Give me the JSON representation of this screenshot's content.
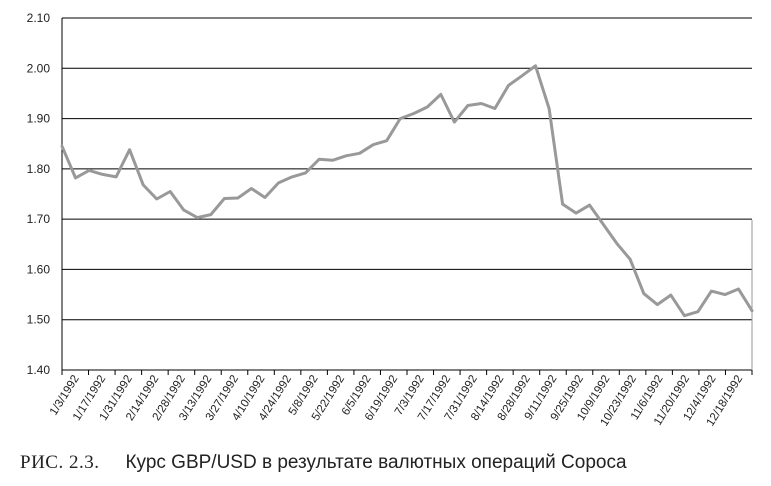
{
  "caption": {
    "figure_label": "РИС. 2.3.",
    "text": "Курс GBP/USD в результате валютных операций Сороса"
  },
  "chart_data": {
    "type": "line",
    "title": "",
    "xlabel": "",
    "ylabel": "",
    "ylim": [
      1.4,
      2.1
    ],
    "yticks": [
      "1.40",
      "1.50",
      "1.60",
      "1.70",
      "1.80",
      "1.90",
      "2.00",
      "2.10"
    ],
    "grid": "horizontal",
    "line_color": "#999999",
    "x_tick_labels": [
      "1/3/1992",
      "1/17/1992",
      "1/31/1992",
      "2/14/1992",
      "2/28/1992",
      "3/13/1992",
      "3/27/1992",
      "4/10/1992",
      "4/24/1992",
      "5/8/1992",
      "5/22/1992",
      "6/5/1992",
      "6/19/1992",
      "7/3/1992",
      "7/17/1992",
      "7/31/1992",
      "8/14/1992",
      "8/28/1992",
      "9/11/1992",
      "9/25/1992",
      "10/9/1992",
      "10/23/1992",
      "11/6/1992",
      "11/20/1992",
      "12/4/1992",
      "12/18/1992"
    ],
    "series": [
      {
        "values": [
          1.845,
          1.782,
          1.797,
          1.789,
          1.784,
          1.838,
          1.768,
          1.74,
          1.755,
          1.718,
          1.703,
          1.709,
          1.741,
          1.742,
          1.761,
          1.743,
          1.772,
          1.784,
          1.792,
          1.819,
          1.817,
          1.826,
          1.831,
          1.848,
          1.856,
          1.9,
          1.91,
          1.923,
          1.948,
          1.893,
          1.926,
          1.93,
          1.92,
          1.966,
          1.985,
          2.005,
          1.92,
          1.73,
          1.712,
          1.728,
          1.69,
          1.652,
          1.62,
          1.552,
          1.53,
          1.549,
          1.508,
          1.516,
          1.557,
          1.55,
          1.561,
          1.518
        ]
      }
    ]
  }
}
